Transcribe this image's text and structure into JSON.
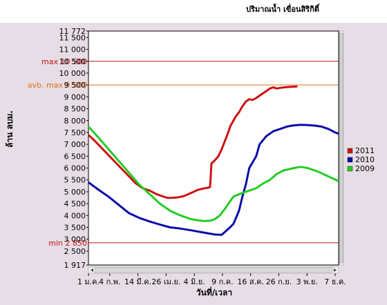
{
  "title": "ปริมาณน้ำ เขื่อนสิริกิติ์",
  "chart_data": {
    "type": "line",
    "title": "ปริมาณน้ำ เขื่อนสิริกิติ์",
    "xlabel": "วันที่/เวลา",
    "ylabel": "ล้าน ลบม.",
    "ylim": [
      1917,
      11772
    ],
    "ytick_labels": [
      {
        "v": 11772,
        "t": "11 772"
      },
      {
        "v": 11500,
        "t": "11 500"
      },
      {
        "v": 11000,
        "t": "11 000"
      },
      {
        "v": 10500,
        "t": "10 500"
      },
      {
        "v": 10000,
        "t": "10 000"
      },
      {
        "v": 9500,
        "t": "9 500"
      },
      {
        "v": 9000,
        "t": "9 000"
      },
      {
        "v": 8500,
        "t": "8 500"
      },
      {
        "v": 8000,
        "t": "8 000"
      },
      {
        "v": 7500,
        "t": "7 500"
      },
      {
        "v": 7000,
        "t": "7 000"
      },
      {
        "v": 6500,
        "t": "6 500"
      },
      {
        "v": 6000,
        "t": "6 000"
      },
      {
        "v": 5500,
        "t": "5 500"
      },
      {
        "v": 5000,
        "t": "5 000"
      },
      {
        "v": 4500,
        "t": "4 500"
      },
      {
        "v": 4000,
        "t": "4 000"
      },
      {
        "v": 3500,
        "t": "3 500"
      },
      {
        "v": 3000,
        "t": "3 000"
      },
      {
        "v": 2500,
        "t": "2 500"
      },
      {
        "v": 1917,
        "t": "1 917"
      }
    ],
    "xlim": [
      1,
      365
    ],
    "xtick_labels": [
      {
        "d": 1,
        "t": "1 ม.ค."
      },
      {
        "d": 32,
        "t": "4 ก.พ."
      },
      {
        "d": 73,
        "t": "14 มี.ค."
      },
      {
        "d": 114,
        "t": "26 เม.ย."
      },
      {
        "d": 155,
        "t": "4 มิ.ย."
      },
      {
        "d": 196,
        "t": "9 ก.ค."
      },
      {
        "d": 237,
        "t": "16 ส.ค."
      },
      {
        "d": 278,
        "t": "26 ก.ย."
      },
      {
        "d": 319,
        "t": "3 พ.ย."
      },
      {
        "d": 360,
        "t": "7 ธ.ค."
      }
    ],
    "reference_lines": [
      {
        "name": "max",
        "label": "max 10 500",
        "value": 10500,
        "color": "#cc1111"
      },
      {
        "name": "avg-max",
        "label": "avb. max 9 500",
        "value": 9500,
        "color": "#e07010"
      },
      {
        "name": "min",
        "label": "min 2 850",
        "value": 2850,
        "color": "#cc1111"
      }
    ],
    "legend_position": "right",
    "series": [
      {
        "name": "2011",
        "color": "#cc1111",
        "x": [
          1,
          10,
          20,
          30,
          40,
          50,
          60,
          70,
          80,
          90,
          100,
          110,
          115,
          120,
          130,
          140,
          150,
          160,
          170,
          175,
          178,
          180,
          184,
          190,
          195,
          199,
          203,
          208,
          212,
          216,
          220,
          225,
          230,
          235,
          240,
          245,
          250,
          255,
          260,
          265,
          270,
          275,
          280,
          285,
          290,
          295,
          300,
          305
        ],
        "y": [
          7400,
          7150,
          6850,
          6550,
          6250,
          5950,
          5650,
          5350,
          5150,
          5050,
          4900,
          4800,
          4750,
          4740,
          4760,
          4820,
          4950,
          5080,
          5150,
          5170,
          5200,
          6200,
          6300,
          6500,
          6800,
          7100,
          7400,
          7800,
          8000,
          8200,
          8350,
          8600,
          8800,
          8900,
          8870,
          8950,
          9050,
          9150,
          9250,
          9350,
          9400,
          9350,
          9380,
          9400,
          9410,
          9420,
          9430,
          9440
        ]
      },
      {
        "name": "2010",
        "color": "#0a0aaa",
        "x": [
          1,
          15,
          30,
          45,
          60,
          75,
          90,
          105,
          120,
          135,
          150,
          165,
          175,
          185,
          195,
          205,
          212,
          220,
          225,
          230,
          235,
          240,
          245,
          250,
          260,
          270,
          280,
          290,
          300,
          310,
          320,
          330,
          340,
          350,
          360,
          365
        ],
        "y": [
          5400,
          5100,
          4800,
          4450,
          4100,
          3900,
          3750,
          3620,
          3500,
          3450,
          3380,
          3300,
          3250,
          3200,
          3190,
          3450,
          3650,
          4200,
          4800,
          5300,
          6000,
          6250,
          6500,
          7000,
          7350,
          7550,
          7650,
          7750,
          7800,
          7820,
          7810,
          7790,
          7750,
          7650,
          7500,
          7450
        ]
      },
      {
        "name": "2009",
        "color": "#22cc22",
        "x": [
          1,
          15,
          30,
          45,
          60,
          75,
          90,
          105,
          120,
          135,
          150,
          160,
          170,
          178,
          185,
          192,
          200,
          212,
          225,
          235,
          245,
          255,
          265,
          275,
          285,
          300,
          310,
          320,
          335,
          350,
          365
        ],
        "y": [
          7750,
          7300,
          6800,
          6300,
          5800,
          5300,
          4900,
          4500,
          4200,
          4000,
          3850,
          3800,
          3770,
          3780,
          3850,
          4000,
          4300,
          4800,
          4950,
          5050,
          5150,
          5350,
          5500,
          5750,
          5900,
          6000,
          6050,
          6000,
          5850,
          5650,
          5450
        ]
      }
    ]
  }
}
